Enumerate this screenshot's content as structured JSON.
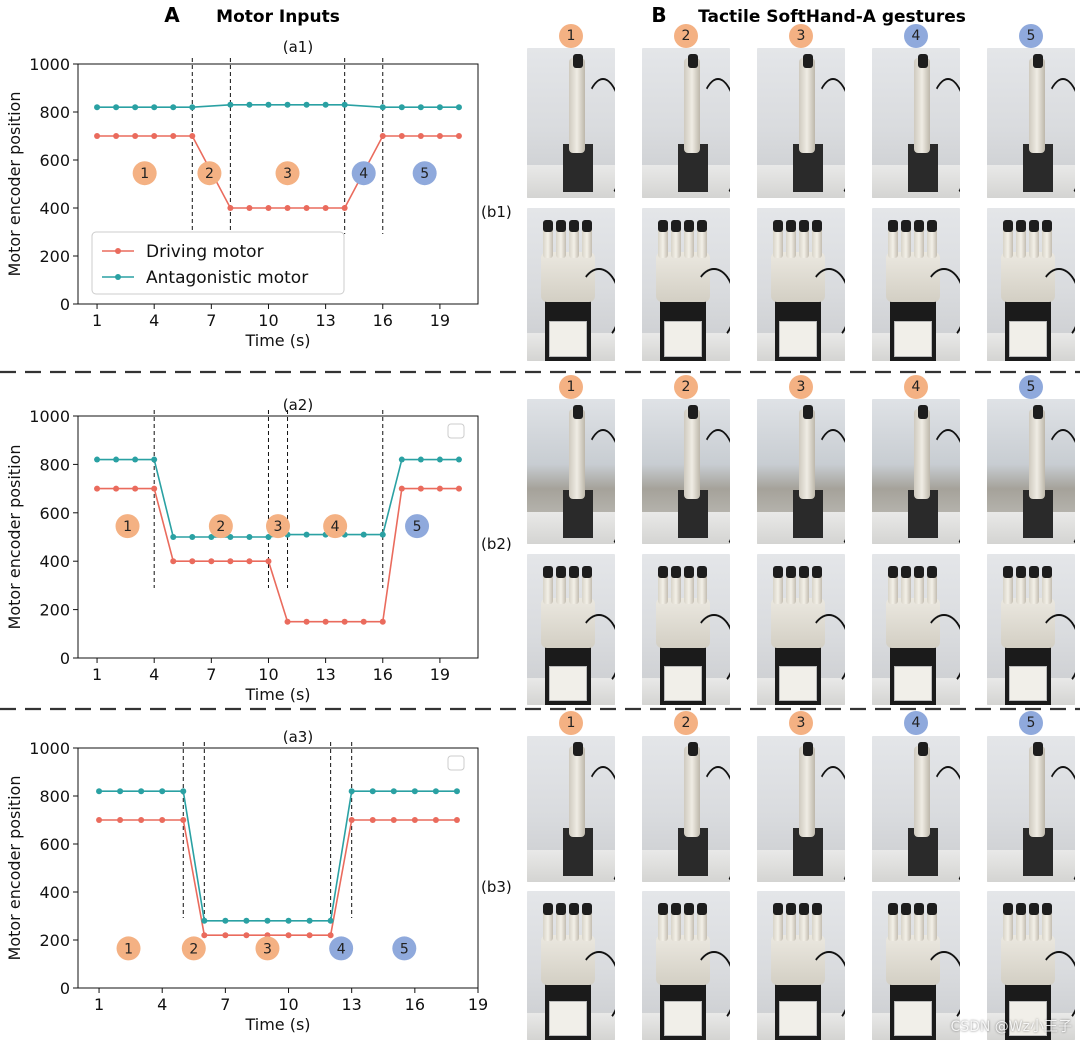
{
  "header": {
    "panel_a_letter": "A",
    "panel_a_title": "Motor Inputs",
    "panel_b_letter": "B",
    "panel_b_title": "Tactile SoftHand-A gestures"
  },
  "colors": {
    "driving": "#ea6b5d",
    "antagonistic": "#2aa1a3",
    "badge_orange": "#f4b183",
    "badge_blue": "#8fa9dc"
  },
  "chart_data": [
    {
      "type": "line",
      "id": "a1",
      "title": "(a1)",
      "xlabel": "Time (s)",
      "ylabel": "Motor encoder position",
      "xlim": [
        0,
        21
      ],
      "ylim": [
        0,
        1000
      ],
      "xticks": [
        1,
        4,
        7,
        10,
        13,
        16,
        19
      ],
      "yticks": [
        0,
        200,
        400,
        600,
        800,
        1000
      ],
      "legend": [
        "Driving motor",
        "Antagonistic motor"
      ],
      "legend_loc": "lower-left",
      "series": [
        {
          "name": "Driving motor",
          "x": [
            1,
            2,
            3,
            4,
            5,
            6,
            8,
            9,
            10,
            11,
            12,
            13,
            14,
            16,
            17,
            18,
            19,
            20
          ],
          "y": [
            700,
            700,
            700,
            700,
            700,
            700,
            400,
            400,
            400,
            400,
            400,
            400,
            400,
            700,
            700,
            700,
            700,
            700
          ]
        },
        {
          "name": "Antagonistic motor",
          "x": [
            1,
            2,
            3,
            4,
            5,
            6,
            8,
            9,
            10,
            11,
            12,
            13,
            14,
            16,
            17,
            18,
            19,
            20
          ],
          "y": [
            820,
            820,
            820,
            820,
            820,
            820,
            830,
            830,
            830,
            830,
            830,
            830,
            830,
            820,
            820,
            820,
            820,
            820
          ]
        }
      ],
      "vlines": [
        6,
        8,
        14,
        16
      ],
      "phases": [
        {
          "label": "1",
          "x": 3.5,
          "y": 545,
          "color": "orange"
        },
        {
          "label": "2",
          "x": 6.9,
          "y": 545,
          "color": "orange"
        },
        {
          "label": "3",
          "x": 11,
          "y": 545,
          "color": "orange"
        },
        {
          "label": "4",
          "x": 15,
          "y": 545,
          "color": "blue"
        },
        {
          "label": "5",
          "x": 18.2,
          "y": 545,
          "color": "blue"
        }
      ]
    },
    {
      "type": "line",
      "id": "a2",
      "title": "(a2)",
      "xlabel": "Time (s)",
      "ylabel": "Motor encoder position",
      "xlim": [
        0,
        21
      ],
      "ylim": [
        0,
        1000
      ],
      "xticks": [
        1,
        4,
        7,
        10,
        13,
        16,
        19
      ],
      "yticks": [
        0,
        200,
        400,
        600,
        800,
        1000
      ],
      "legend": [],
      "series": [
        {
          "name": "Driving motor",
          "x": [
            1,
            2,
            3,
            4,
            5,
            6,
            7,
            8,
            9,
            10,
            11,
            12,
            13,
            14,
            15,
            16,
            17,
            18,
            19,
            20
          ],
          "y": [
            700,
            700,
            700,
            700,
            400,
            400,
            400,
            400,
            400,
            400,
            150,
            150,
            150,
            150,
            150,
            150,
            700,
            700,
            700,
            700
          ]
        },
        {
          "name": "Antagonistic motor",
          "x": [
            1,
            2,
            3,
            4,
            5,
            6,
            7,
            8,
            9,
            10,
            11,
            12,
            13,
            14,
            15,
            16,
            17,
            18,
            19,
            20
          ],
          "y": [
            820,
            820,
            820,
            820,
            500,
            500,
            500,
            500,
            500,
            500,
            510,
            510,
            510,
            510,
            510,
            510,
            820,
            820,
            820,
            820
          ]
        }
      ],
      "vlines": [
        4,
        10,
        11,
        16
      ],
      "phases": [
        {
          "label": "1",
          "x": 2.6,
          "y": 545,
          "color": "orange"
        },
        {
          "label": "2",
          "x": 7.5,
          "y": 545,
          "color": "orange"
        },
        {
          "label": "3",
          "x": 10.5,
          "y": 545,
          "color": "orange"
        },
        {
          "label": "4",
          "x": 13.5,
          "y": 545,
          "color": "orange"
        },
        {
          "label": "5",
          "x": 17.8,
          "y": 545,
          "color": "blue"
        }
      ]
    },
    {
      "type": "line",
      "id": "a3",
      "title": "(a3)",
      "xlabel": "Time (s)",
      "ylabel": "Motor encoder position",
      "xlim": [
        0,
        19
      ],
      "ylim": [
        0,
        1000
      ],
      "xticks": [
        1,
        4,
        7,
        10,
        13,
        16,
        19
      ],
      "yticks": [
        0,
        200,
        400,
        600,
        800,
        1000
      ],
      "legend": [],
      "series": [
        {
          "name": "Driving motor",
          "x": [
            1,
            2,
            3,
            4,
            5,
            6,
            7,
            8,
            9,
            10,
            11,
            12,
            13,
            14,
            15,
            16,
            17,
            18
          ],
          "y": [
            700,
            700,
            700,
            700,
            700,
            220,
            220,
            220,
            220,
            220,
            220,
            220,
            700,
            700,
            700,
            700,
            700,
            700
          ]
        },
        {
          "name": "Antagonistic motor",
          "x": [
            1,
            2,
            3,
            4,
            5,
            6,
            7,
            8,
            9,
            10,
            11,
            12,
            13,
            14,
            15,
            16,
            17,
            18
          ],
          "y": [
            820,
            820,
            820,
            820,
            820,
            280,
            280,
            280,
            280,
            280,
            280,
            280,
            820,
            820,
            820,
            820,
            820,
            820
          ]
        }
      ],
      "vlines": [
        5,
        6,
        12,
        13
      ],
      "phases": [
        {
          "label": "1",
          "x": 2.4,
          "y": 165,
          "color": "orange"
        },
        {
          "label": "2",
          "x": 5.5,
          "y": 165,
          "color": "orange"
        },
        {
          "label": "3",
          "x": 9,
          "y": 165,
          "color": "orange"
        },
        {
          "label": "4",
          "x": 12.5,
          "y": 165,
          "color": "blue"
        },
        {
          "label": "5",
          "x": 15.5,
          "y": 165,
          "color": "blue"
        }
      ]
    }
  ],
  "photos": {
    "rows": [
      {
        "label": "(b1)",
        "badges": [
          {
            "n": "1",
            "color": "orange"
          },
          {
            "n": "2",
            "color": "orange"
          },
          {
            "n": "3",
            "color": "orange"
          },
          {
            "n": "4",
            "color": "blue"
          },
          {
            "n": "5",
            "color": "blue"
          }
        ]
      },
      {
        "label": "(b2)",
        "badges": [
          {
            "n": "1",
            "color": "orange"
          },
          {
            "n": "2",
            "color": "orange"
          },
          {
            "n": "3",
            "color": "orange"
          },
          {
            "n": "4",
            "color": "orange"
          },
          {
            "n": "5",
            "color": "blue"
          }
        ]
      },
      {
        "label": "(b3)",
        "badges": [
          {
            "n": "1",
            "color": "orange"
          },
          {
            "n": "2",
            "color": "orange"
          },
          {
            "n": "3",
            "color": "orange"
          },
          {
            "n": "4",
            "color": "blue"
          },
          {
            "n": "5",
            "color": "blue"
          }
        ]
      }
    ]
  },
  "watermark": "CSDN @Wz小王子"
}
